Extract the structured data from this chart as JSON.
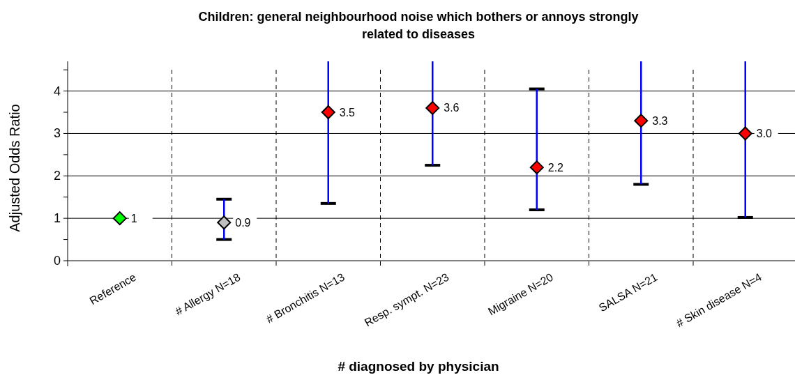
{
  "chart_data": {
    "type": "scatter",
    "title": "Children: general neighbourhood noise which bothers or annoys strongly related to diseases",
    "xlabel": "# diagnosed by physician",
    "ylabel": "Adjusted Odds Ratio",
    "categories": [
      "Reference",
      "# Allergy N=18",
      "# Bronchitis N=13",
      "Resp. sympt. N=23",
      "Migraine N=20",
      "SALSA N=21",
      "# Skin disease N=4"
    ],
    "values": [
      1,
      0.9,
      3.5,
      3.6,
      2.2,
      3.3,
      3.0
    ],
    "colors": [
      "#00ff00",
      "#c0c0c0",
      "#ff0000",
      "#ff0000",
      "#ff0000",
      "#ff0000",
      "#ff0000"
    ],
    "errors": [
      null,
      [
        0.5,
        1.45
      ],
      [
        1.35,
        4.7
      ],
      [
        2.25,
        4.7
      ],
      [
        1.2,
        4.05
      ],
      [
        1.8,
        4.7
      ],
      [
        1.02,
        4.7
      ]
    ],
    "value_labels": [
      "1",
      "0.9",
      "3.5",
      "3.6",
      "2.2",
      "3.3",
      "3.0"
    ],
    "ylim": [
      0,
      4.7
    ],
    "yticks": [
      0,
      {
        "value": 0.5,
        "label": null
      },
      1,
      {
        "value": 1.5,
        "label": null
      },
      2,
      {
        "value": 2.5,
        "label": null
      },
      3,
      {
        "value": 3.5,
        "label": null
      },
      4,
      {
        "value": 4.5,
        "label": null
      }
    ],
    "grid": true,
    "marker": "diamond"
  }
}
